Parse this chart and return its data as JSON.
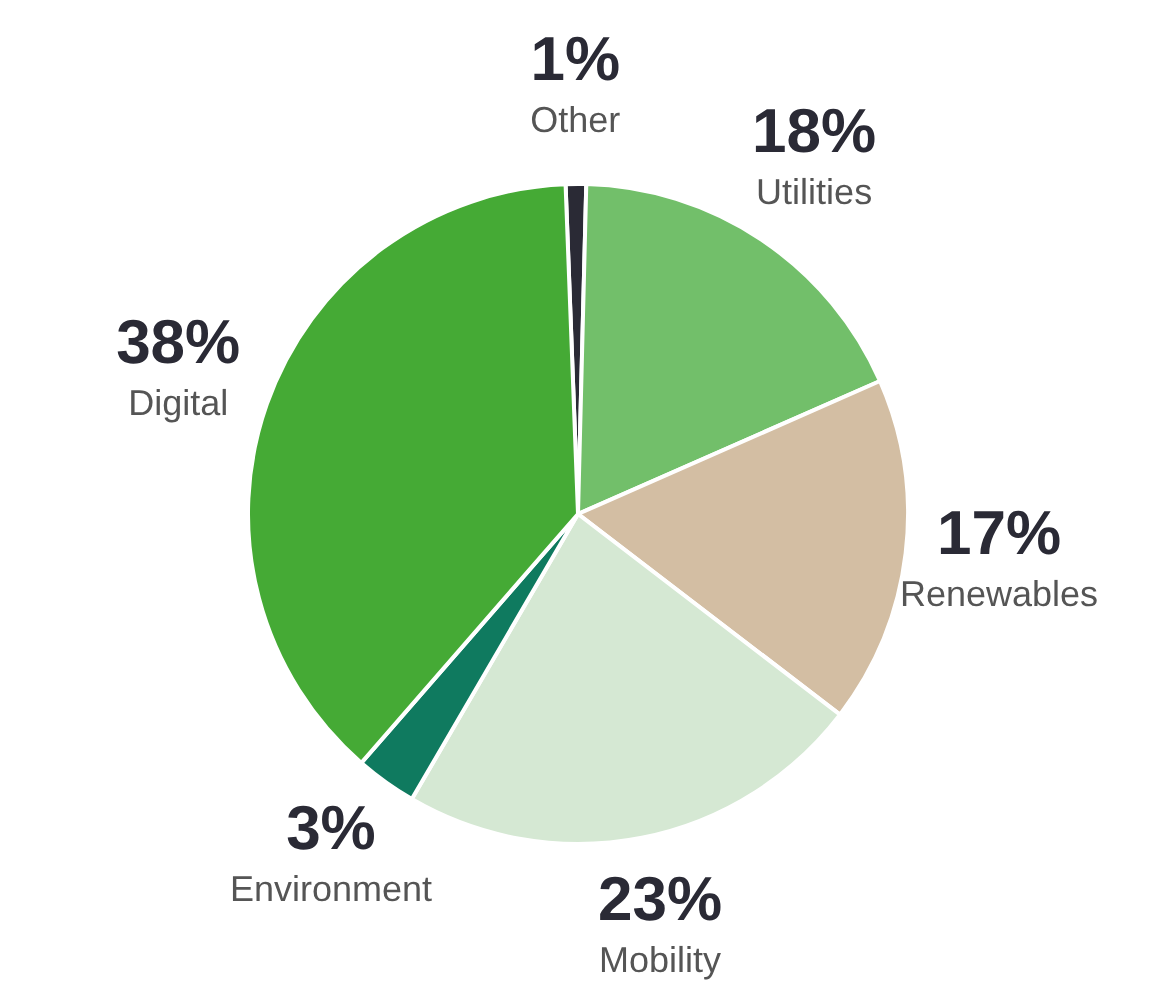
{
  "chart_data": {
    "type": "pie",
    "categories": [
      "Other",
      "Utilities",
      "Renewables",
      "Mobility",
      "Environment",
      "Digital"
    ],
    "values": [
      1,
      18,
      17,
      23,
      3,
      38
    ],
    "value_labels": [
      "1%",
      "18%",
      "17%",
      "23%",
      "3%",
      "38%"
    ],
    "colors": [
      "#2a2a35",
      "#72bf6a",
      "#d3bea3",
      "#d5e8d3",
      "#0f7a5f",
      "#45aa35"
    ]
  }
}
